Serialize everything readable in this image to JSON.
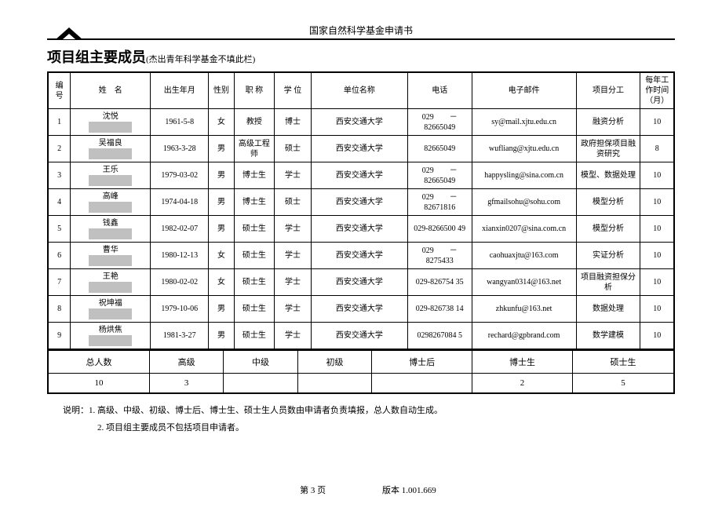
{
  "header": {
    "docTitle": "国家自然科学基金申请书"
  },
  "section": {
    "title": "项目组主要成员",
    "note": "(杰出青年科学基金不填此栏)"
  },
  "columns": [
    "编号",
    "姓　名",
    "出生年月",
    "性别",
    "职 称",
    "学 位",
    "单位名称",
    "电话",
    "电子邮件",
    "项目分工",
    "每年工作时间（月）"
  ],
  "rows": [
    {
      "no": "1",
      "name": "沈悦",
      "dob": "1961-5-8",
      "sex": "女",
      "title": "教授",
      "degree": "博士",
      "org": "西安交通大学",
      "phone": "029　　－82665049",
      "email": "sy@mail.xjtu.edu.cn",
      "role": "融资分析",
      "months": "10"
    },
    {
      "no": "2",
      "name": "吴福良",
      "dob": "1963-3-28",
      "sex": "男",
      "title": "高级工程师",
      "degree": "硕士",
      "org": "西安交通大学",
      "phone": "82665049",
      "email": "wufliang@xjtu.edu.cn",
      "role": "政府担保项目融资研究",
      "months": "8"
    },
    {
      "no": "3",
      "name": "王乐",
      "dob": "1979-03-02",
      "sex": "男",
      "title": "博士生",
      "degree": "学士",
      "org": "西安交通大学",
      "phone": "029　　－82665049",
      "email": "happysling@sina.com.cn",
      "role": "模型、数据处理",
      "months": "10"
    },
    {
      "no": "4",
      "name": "高峰",
      "dob": "1974-04-18",
      "sex": "男",
      "title": "博士生",
      "degree": "硕士",
      "org": "西安交通大学",
      "phone": "029　　－82671816",
      "email": "gfmailsohu@sohu.com",
      "role": "模型分析",
      "months": "10"
    },
    {
      "no": "5",
      "name": "钱鑫",
      "dob": "1982-02-07",
      "sex": "男",
      "title": "硕士生",
      "degree": "学士",
      "org": "西安交通大学",
      "phone": "029-8266500 49",
      "email": "xianxin0207@sina.com.cn",
      "role": "模型分析",
      "months": "10"
    },
    {
      "no": "6",
      "name": "曹华",
      "dob": "1980-12-13",
      "sex": "女",
      "title": "硕士生",
      "degree": "学士",
      "org": "西安交通大学",
      "phone": "029　　－8275433",
      "email": "caohuaxjtu@163.com",
      "role": "实证分析",
      "months": "10"
    },
    {
      "no": "7",
      "name": "王艳",
      "dob": "1980-02-02",
      "sex": "女",
      "title": "硕士生",
      "degree": "学士",
      "org": "西安交通大学",
      "phone": "029-826754 35",
      "email": "wangyan0314@163.net",
      "role": "项目融资担保分析",
      "months": "10"
    },
    {
      "no": "8",
      "name": "祝坤福",
      "dob": "1979-10-06",
      "sex": "男",
      "title": "硕士生",
      "degree": "学士",
      "org": "西安交通大学",
      "phone": "029-826738 14",
      "email": "zhkunfu@163.net",
      "role": "数据处理",
      "months": "10"
    },
    {
      "no": "9",
      "name": "杨烘焦",
      "dob": "1981-3-27",
      "sex": "男",
      "title": "硕士生",
      "degree": "学士",
      "org": "西安交通大学",
      "phone": "0298267084 5",
      "email": "rechard@gpbrand.com",
      "role": "数学建模",
      "months": "10"
    }
  ],
  "summary": {
    "labels": [
      "总人数",
      "高级",
      "中级",
      "初级",
      "博士后",
      "博士生",
      "硕士生"
    ],
    "values": [
      "10",
      "3",
      "",
      "",
      "",
      "2",
      "5"
    ]
  },
  "notes": {
    "n1": "说明：1. 高级、中级、初级、博士后、博士生、硕士生人员数由申请者负责填报，总人数自动生成。",
    "n2": "2. 项目组主要成员不包括项目申请者。"
  },
  "footer": {
    "page": "第 3 页",
    "version": "版本 1.001.669"
  },
  "widths": {
    "no": 28,
    "name": 100,
    "dob": 72,
    "sex": 32,
    "title": 50,
    "degree": 46,
    "org": 120,
    "phone": 80,
    "email": 130,
    "role": 80,
    "months": 42
  }
}
